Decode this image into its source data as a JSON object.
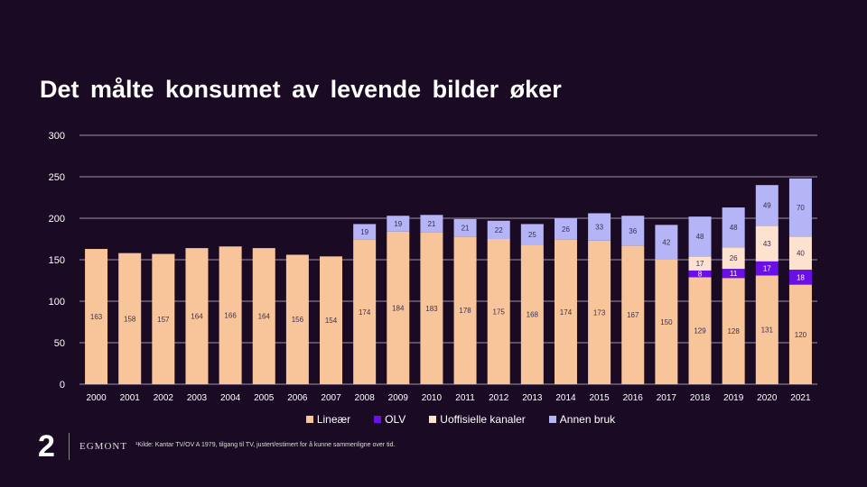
{
  "title": "Det målte  konsumet  av levende  bilder øker",
  "chart_data": {
    "type": "bar",
    "stacked": true,
    "title": "Det målte  konsumet  av levende  bilder øker",
    "categories": [
      "2000",
      "2001",
      "2002",
      "2003",
      "2004",
      "2005",
      "2006",
      "2007",
      "2008",
      "2009",
      "2010",
      "2011",
      "2012",
      "2013",
      "2014",
      "2015",
      "2016",
      "2017",
      "2018",
      "2019",
      "2020",
      "2021"
    ],
    "series": [
      {
        "name": "Lineær",
        "color": "#f8c59a",
        "values": [
          163,
          158,
          157,
          164,
          166,
          164,
          156,
          154,
          174,
          184,
          183,
          178,
          175,
          168,
          174,
          173,
          167,
          150,
          129,
          128,
          131,
          120
        ]
      },
      {
        "name": "OLV",
        "color": "#6a10e6",
        "values": [
          null,
          null,
          null,
          null,
          null,
          null,
          null,
          null,
          null,
          null,
          null,
          null,
          null,
          null,
          null,
          null,
          null,
          null,
          8,
          11,
          17,
          18
        ]
      },
      {
        "name": "Uoffisielle kanaler",
        "color": "#fde3cf",
        "values": [
          null,
          null,
          null,
          null,
          null,
          null,
          null,
          null,
          null,
          null,
          null,
          null,
          null,
          null,
          null,
          null,
          null,
          null,
          17,
          26,
          43,
          40
        ]
      },
      {
        "name": "Annen bruk",
        "color": "#b4b4f6",
        "values": [
          null,
          null,
          null,
          null,
          null,
          null,
          null,
          null,
          19,
          19,
          21,
          21,
          22,
          25,
          26,
          33,
          36,
          42,
          48,
          48,
          49,
          70
        ]
      }
    ],
    "yticks": [
      0,
      50,
      100,
      150,
      200,
      250,
      300
    ],
    "ylim": [
      0,
      300
    ],
    "grid": true,
    "legend": "bottom"
  },
  "footer": {
    "logo": "2",
    "brand": "EGMONT",
    "source": "¹Kilde: Kantar TV/OV A 1979, tilgang til TV, justert/estimert for å kunne sammenligne over tid."
  }
}
